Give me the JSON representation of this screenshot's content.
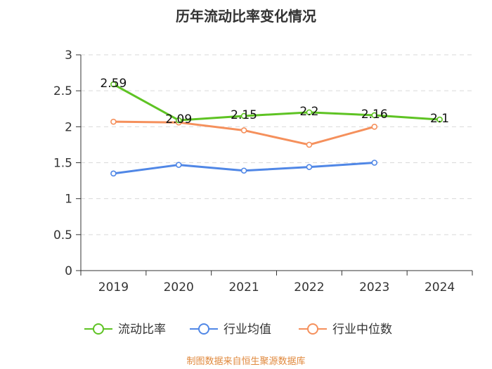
{
  "chart_data": {
    "type": "line",
    "title": "历年流动比率变化情况",
    "categories": [
      "2019",
      "2020",
      "2021",
      "2022",
      "2023",
      "2024"
    ],
    "ylim": [
      0,
      3
    ],
    "yticks": [
      "0",
      "0.5",
      "1",
      "1.5",
      "2",
      "2.5",
      "3"
    ],
    "grid": true,
    "legend_position": "bottom",
    "series": [
      {
        "name": "流动比率",
        "color": "#5ec323",
        "values": [
          2.59,
          2.09,
          2.15,
          2.2,
          2.16,
          2.1
        ],
        "labels": [
          "2.59",
          "2.09",
          "2.15",
          "2.2",
          "2.16",
          "2.1"
        ]
      },
      {
        "name": "行业均值",
        "color": "#5087e6",
        "values": [
          1.35,
          1.47,
          1.39,
          1.44,
          1.5,
          null
        ]
      },
      {
        "name": "行业中位数",
        "color": "#f5905c",
        "values": [
          2.07,
          2.06,
          1.95,
          1.75,
          2.0,
          null
        ]
      }
    ]
  },
  "source": "制图数据来自恒生聚源数据库"
}
